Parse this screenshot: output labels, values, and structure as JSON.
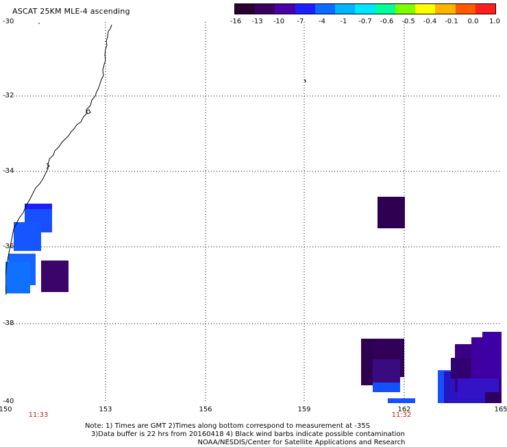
{
  "title": "ASCAT 25KM MLE-4 ascending",
  "colorbar": {
    "labels": [
      "-16",
      "-13",
      "-10",
      "-7",
      "-4",
      "-1",
      "-0.7",
      "-0.6",
      "-0.5",
      "-0.4",
      "-0.1",
      "0.0",
      "1.0"
    ],
    "colors": [
      "#2a0030",
      "#3a0060",
      "#4b00a8",
      "#1e1eff",
      "#0b6cff",
      "#00b4ff",
      "#00e6ff",
      "#00ff9a",
      "#7dff00",
      "#ffff00",
      "#ffb400",
      "#ff5a00",
      "#ff1e1e"
    ]
  },
  "axes": {
    "y_labels": [
      "-30",
      "-32",
      "-34",
      "-36",
      "-38",
      "-40"
    ],
    "x_labels": [
      "150",
      "153",
      "156",
      "159",
      "162",
      "165"
    ]
  },
  "times": [
    "11:33",
    "11:32"
  ],
  "notes": [
    "Note: 1) Times are GMT 2)Times along bottom correspond to measurement at -35S",
    "3)Data buffer is 22 hrs from 20160418 4) Black wind barbs indicate possible contamination",
    "NOAA/NESDIS/Center for Satellite Applications and Research"
  ]
}
